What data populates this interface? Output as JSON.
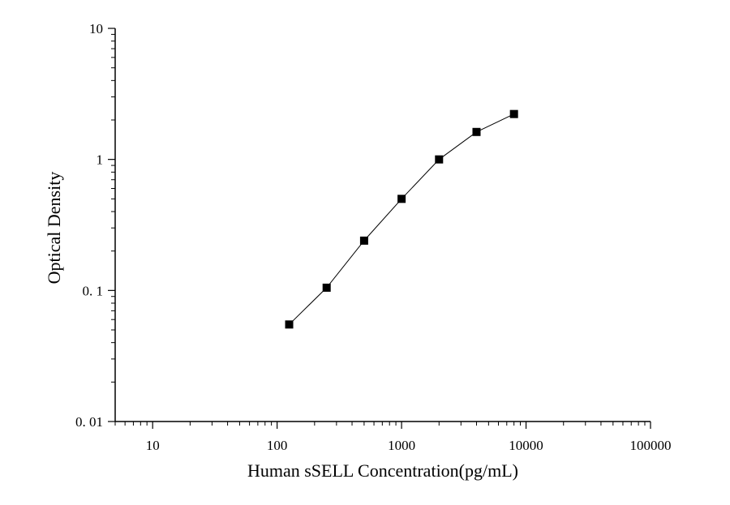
{
  "chart_data": {
    "type": "line",
    "title": "",
    "xlabel": "Human sSELL Concentration(pg/mL)",
    "ylabel": "Optical Density",
    "x_scale": "log",
    "y_scale": "log",
    "xlim": [
      5,
      100000
    ],
    "ylim": [
      0.01,
      10
    ],
    "x_ticks": [
      {
        "value": 10,
        "label": "10"
      },
      {
        "value": 100,
        "label": "100"
      },
      {
        "value": 1000,
        "label": "1000"
      },
      {
        "value": 10000,
        "label": "10000"
      },
      {
        "value": 100000,
        "label": "100000"
      }
    ],
    "y_ticks": [
      {
        "value": 0.01,
        "label": "0. 01"
      },
      {
        "value": 0.1,
        "label": "0. 1"
      },
      {
        "value": 1,
        "label": "1"
      },
      {
        "value": 10,
        "label": "10"
      }
    ],
    "grid": false,
    "legend": "none",
    "marker": "square",
    "series": [
      {
        "x": [
          125,
          250,
          500,
          1000,
          2000,
          4000,
          8000
        ],
        "y": [
          0.055,
          0.105,
          0.24,
          0.5,
          1.0,
          1.62,
          2.22
        ]
      }
    ],
    "colors": {
      "line": "#000000",
      "marker": "#000000",
      "axis": "#000000"
    }
  }
}
